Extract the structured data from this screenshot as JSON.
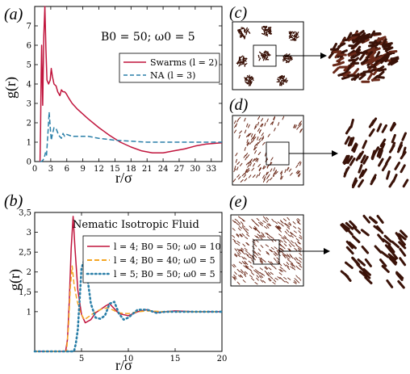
{
  "chart_data": [
    {
      "panel": "(a)",
      "type": "line",
      "ylabel": "g(r)",
      "xlabel": "r/σ",
      "annotation": "B0 = 50; ω0 = 5",
      "xlim": [
        0,
        35
      ],
      "ylim": [
        0,
        8
      ],
      "xticks": [
        0,
        3,
        6,
        9,
        12,
        15,
        18,
        21,
        24,
        27,
        30,
        33
      ],
      "yticks": [
        0,
        1,
        2,
        3,
        4,
        5,
        6,
        7
      ],
      "legend_position": "top-right",
      "series": [
        {
          "name": "Swarms (l = 2)",
          "color": "#c0143c",
          "style": "solid",
          "x": [
            1.0,
            1.1,
            1.2,
            1.3,
            1.5,
            1.7,
            1.9,
            2.1,
            2.3,
            2.6,
            2.9,
            3.1,
            3.3,
            3.6,
            4.0,
            4.3,
            4.7,
            5.0,
            5.3,
            5.6,
            5.9,
            6.3,
            7,
            8,
            10,
            12,
            14,
            16,
            18,
            20,
            22,
            24,
            26,
            28,
            30,
            32,
            34,
            35
          ],
          "y": [
            0.0,
            1.8,
            4.5,
            6.0,
            2.9,
            6.5,
            8.0,
            5.8,
            4.2,
            4.0,
            4.2,
            4.8,
            4.4,
            4.0,
            3.9,
            3.6,
            3.4,
            3.7,
            3.6,
            3.6,
            3.5,
            3.3,
            3.0,
            2.7,
            2.2,
            1.75,
            1.35,
            1.0,
            0.75,
            0.55,
            0.45,
            0.45,
            0.55,
            0.65,
            0.8,
            0.9,
            0.95,
            0.97
          ]
        },
        {
          "name": "NA (l = 3)",
          "color": "#2a7fa8",
          "style": "dashed",
          "x": [
            1.0,
            1.2,
            1.5,
            1.8,
            2.0,
            2.2,
            2.5,
            2.7,
            2.9,
            3.1,
            3.3,
            3.6,
            4.0,
            4.5,
            5.0,
            5.3,
            5.6,
            6.0,
            7,
            8,
            10,
            12,
            15,
            18,
            21,
            24,
            27,
            30,
            35
          ],
          "y": [
            0.0,
            0.0,
            0.05,
            0.2,
            0.45,
            0.3,
            1.6,
            2.55,
            1.8,
            1.1,
            1.4,
            1.75,
            1.7,
            1.35,
            1.2,
            1.45,
            1.3,
            1.4,
            1.3,
            1.3,
            1.3,
            1.2,
            1.1,
            1.05,
            1.0,
            1.0,
            1.0,
            1.0,
            1.0
          ]
        }
      ]
    },
    {
      "panel": "(b)",
      "type": "line",
      "title": "Nematic Isotropic Fluid",
      "ylabel": "g(r)",
      "xlabel": "r/σ",
      "xlim": [
        0,
        20
      ],
      "ylim": [
        0,
        3.5
      ],
      "xticks": [
        5,
        10,
        15,
        20
      ],
      "yticks": [
        "1",
        "1,5",
        "2",
        "2,5",
        "3",
        "3,5"
      ],
      "legend_position": "top-right",
      "series": [
        {
          "name": "l = 4; B0 = 50; ω0 = 10",
          "color": "#c0143c",
          "style": "solid",
          "x": [
            0,
            3.3,
            3.5,
            3.7,
            3.9,
            4.1,
            4.3,
            4.6,
            5.0,
            5.4,
            6.0,
            6.5,
            7.0,
            7.6,
            8.0,
            8.4,
            9.0,
            10,
            11,
            12,
            13,
            14,
            15,
            17,
            20
          ],
          "y": [
            0,
            0,
            0.3,
            1.3,
            2.6,
            3.4,
            2.6,
            1.55,
            0.93,
            0.72,
            0.8,
            0.97,
            1.05,
            1.15,
            1.2,
            1.1,
            0.95,
            0.9,
            1.0,
            1.05,
            0.98,
            1.0,
            1.02,
            1.0,
            1.0
          ]
        },
        {
          "name": "l = 4; B0 = 40; ω0 = 5",
          "color": "#f5a623",
          "style": "dashed",
          "x": [
            0,
            3.4,
            3.6,
            3.8,
            4.0,
            4.2,
            4.5,
            4.9,
            5.3,
            5.8,
            6.5,
            7.2,
            7.8,
            8.3,
            9.0,
            10,
            11,
            12,
            14,
            20
          ],
          "y": [
            0,
            0,
            0.6,
            1.6,
            2.15,
            1.7,
            1.3,
            0.97,
            0.8,
            0.88,
            1.0,
            1.07,
            1.1,
            1.05,
            0.97,
            0.95,
            1.0,
            1.02,
            1.0,
            1.0
          ]
        },
        {
          "name": "l = 5; B0 = 50; ω0 = 5",
          "color": "#2a7fa8",
          "style": "dotted",
          "x": [
            0,
            4.2,
            4.4,
            4.6,
            4.8,
            5.0,
            5.3,
            5.6,
            6.0,
            6.5,
            7.0,
            7.5,
            8.0,
            8.5,
            9.0,
            9.5,
            10,
            11,
            12,
            13,
            14,
            16,
            20
          ],
          "y": [
            0,
            0,
            0.2,
            0.55,
            1.3,
            2.1,
            2.3,
            1.9,
            1.2,
            0.85,
            0.82,
            0.9,
            1.2,
            1.25,
            0.95,
            0.8,
            0.85,
            1.05,
            1.05,
            0.97,
            1.0,
            1.0,
            1.0
          ]
        }
      ]
    }
  ],
  "panel_labels": {
    "a": "(a)",
    "b": "(b)",
    "c": "(c)",
    "d": "(d)",
    "e": "(e)"
  },
  "colors": {
    "particle": "#6b2a1a",
    "particle_dark": "#3a1208"
  }
}
